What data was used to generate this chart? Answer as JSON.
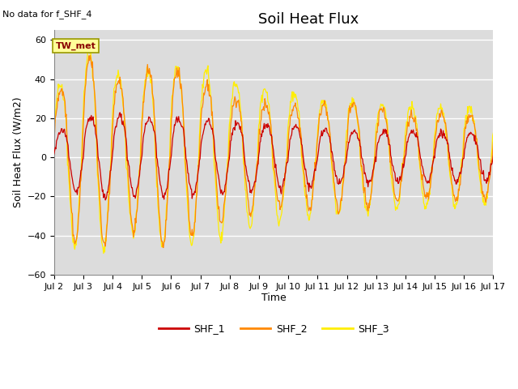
{
  "title": "Soil Heat Flux",
  "ylabel": "Soil Heat Flux (W/m2)",
  "xlabel": "Time",
  "annotation_top_left": "No data for f_SHF_4",
  "legend_box_label": "TW_met",
  "ylim": [
    -60,
    65
  ],
  "yticks": [
    -60,
    -40,
    -20,
    0,
    20,
    40,
    60
  ],
  "x_tick_days": [
    2,
    3,
    4,
    5,
    6,
    7,
    8,
    9,
    10,
    11,
    12,
    13,
    14,
    15,
    16,
    17
  ],
  "x_tick_labels": [
    "Jul 2",
    "Jul 3",
    "Jul 4",
    "Jul 5",
    "Jul 6",
    "Jul 7",
    "Jul 8",
    "Jul 9",
    "Jul 10",
    "Jul 11",
    "Jul 12",
    "Jul 13",
    "Jul 14",
    "Jul 15",
    "Jul 16",
    "Jul 17"
  ],
  "color_SHF1": "#cc0000",
  "color_SHF2": "#ff8800",
  "color_SHF3": "#ffee00",
  "bg_color": "#dcdcdc",
  "legend_entries": [
    "SHF_1",
    "SHF_2",
    "SHF_3"
  ],
  "legend_colors": [
    "#cc0000",
    "#ff8800",
    "#ffee00"
  ],
  "title_fontsize": 13,
  "axis_fontsize": 9,
  "tick_fontsize": 8,
  "legend_box_color": "#ffff99",
  "legend_box_edge": "#999900"
}
